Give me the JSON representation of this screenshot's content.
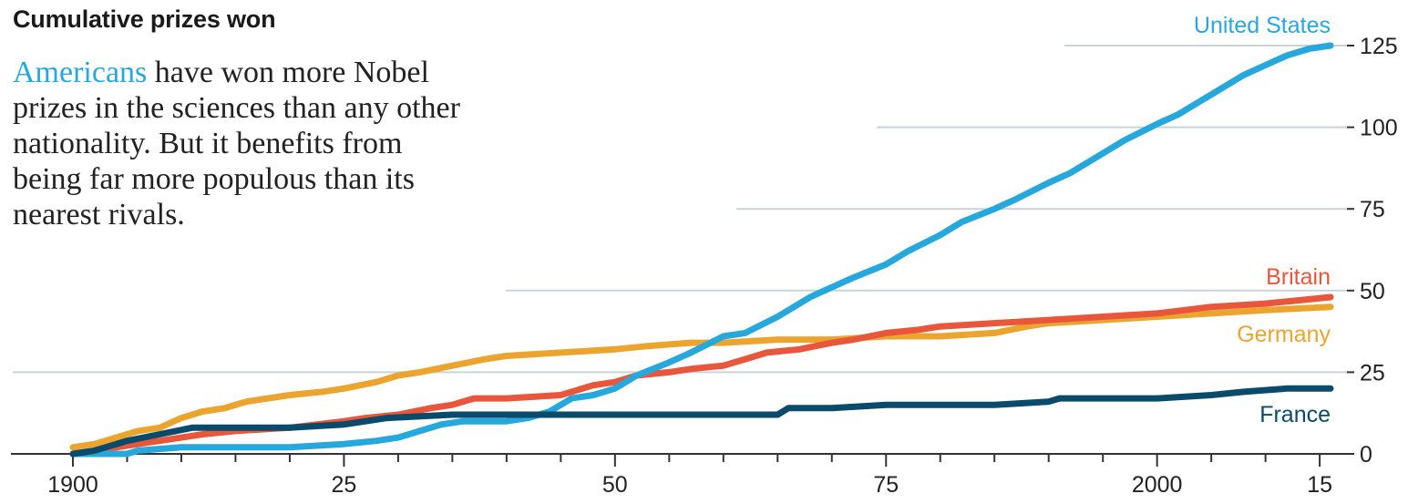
{
  "chart_data": {
    "type": "line",
    "title": "Cumulative prizes won",
    "subtitle_parts": {
      "highlight": "Americans",
      "rest": " have won more Nobel prizes in the sciences than any other nationality. But it benefits from being far more populous than its nearest rivals."
    },
    "xlim": [
      1900,
      2016
    ],
    "ylim": [
      0,
      125
    ],
    "x_ticks": [
      1900,
      1925,
      1950,
      1975,
      2000,
      2015
    ],
    "x_tick_labels": [
      "1900",
      "25",
      "50",
      "75",
      "2000",
      "15"
    ],
    "y_ticks": [
      0,
      25,
      50,
      75,
      100,
      125
    ],
    "y_tick_labels": [
      "0",
      "25",
      "50",
      "75",
      "100",
      "125"
    ],
    "grid": true,
    "y_axis_side": "right",
    "series": [
      {
        "name": "United States",
        "color": "#27a8dc",
        "points": [
          [
            1900,
            0
          ],
          [
            1905,
            0
          ],
          [
            1906,
            1
          ],
          [
            1910,
            2
          ],
          [
            1915,
            2
          ],
          [
            1920,
            2
          ],
          [
            1925,
            3
          ],
          [
            1928,
            4
          ],
          [
            1930,
            5
          ],
          [
            1932,
            7
          ],
          [
            1934,
            9
          ],
          [
            1936,
            10
          ],
          [
            1938,
            10
          ],
          [
            1940,
            10
          ],
          [
            1942,
            11
          ],
          [
            1944,
            13
          ],
          [
            1946,
            17
          ],
          [
            1948,
            18
          ],
          [
            1950,
            20
          ],
          [
            1952,
            24
          ],
          [
            1955,
            28
          ],
          [
            1957,
            31
          ],
          [
            1960,
            36
          ],
          [
            1962,
            37
          ],
          [
            1965,
            42
          ],
          [
            1968,
            48
          ],
          [
            1970,
            51
          ],
          [
            1972,
            54
          ],
          [
            1975,
            58
          ],
          [
            1977,
            62
          ],
          [
            1980,
            67
          ],
          [
            1982,
            71
          ],
          [
            1985,
            75
          ],
          [
            1987,
            78
          ],
          [
            1990,
            83
          ],
          [
            1992,
            86
          ],
          [
            1995,
            92
          ],
          [
            1997,
            96
          ],
          [
            2000,
            101
          ],
          [
            2002,
            104
          ],
          [
            2004,
            108
          ],
          [
            2006,
            112
          ],
          [
            2008,
            116
          ],
          [
            2010,
            119
          ],
          [
            2012,
            122
          ],
          [
            2014,
            124
          ],
          [
            2016,
            125
          ]
        ]
      },
      {
        "name": "Britain",
        "color": "#e8563b",
        "points": [
          [
            1900,
            0
          ],
          [
            1902,
            1
          ],
          [
            1904,
            2
          ],
          [
            1906,
            3
          ],
          [
            1908,
            4
          ],
          [
            1910,
            5
          ],
          [
            1912,
            6
          ],
          [
            1915,
            7
          ],
          [
            1920,
            8
          ],
          [
            1925,
            10
          ],
          [
            1927,
            11
          ],
          [
            1930,
            12
          ],
          [
            1933,
            14
          ],
          [
            1935,
            15
          ],
          [
            1937,
            17
          ],
          [
            1940,
            17
          ],
          [
            1945,
            18
          ],
          [
            1948,
            21
          ],
          [
            1950,
            22
          ],
          [
            1952,
            24
          ],
          [
            1955,
            25
          ],
          [
            1957,
            26
          ],
          [
            1960,
            27
          ],
          [
            1962,
            29
          ],
          [
            1964,
            31
          ],
          [
            1967,
            32
          ],
          [
            1970,
            34
          ],
          [
            1972,
            35
          ],
          [
            1975,
            37
          ],
          [
            1978,
            38
          ],
          [
            1980,
            39
          ],
          [
            1985,
            40
          ],
          [
            1990,
            41
          ],
          [
            1995,
            42
          ],
          [
            2000,
            43
          ],
          [
            2005,
            45
          ],
          [
            2010,
            46
          ],
          [
            2013,
            47
          ],
          [
            2016,
            48
          ]
        ]
      },
      {
        "name": "Germany",
        "color": "#eba52f",
        "points": [
          [
            1900,
            2
          ],
          [
            1902,
            3
          ],
          [
            1904,
            5
          ],
          [
            1906,
            7
          ],
          [
            1908,
            8
          ],
          [
            1910,
            11
          ],
          [
            1912,
            13
          ],
          [
            1914,
            14
          ],
          [
            1916,
            16
          ],
          [
            1920,
            18
          ],
          [
            1923,
            19
          ],
          [
            1925,
            20
          ],
          [
            1928,
            22
          ],
          [
            1930,
            24
          ],
          [
            1932,
            25
          ],
          [
            1935,
            27
          ],
          [
            1938,
            29
          ],
          [
            1940,
            30
          ],
          [
            1945,
            31
          ],
          [
            1950,
            32
          ],
          [
            1953,
            33
          ],
          [
            1957,
            34
          ],
          [
            1960,
            34
          ],
          [
            1965,
            35
          ],
          [
            1970,
            35
          ],
          [
            1975,
            36
          ],
          [
            1980,
            36
          ],
          [
            1985,
            37
          ],
          [
            1988,
            39
          ],
          [
            1990,
            40
          ],
          [
            1995,
            41
          ],
          [
            2000,
            42
          ],
          [
            2005,
            43
          ],
          [
            2010,
            44
          ],
          [
            2016,
            45
          ]
        ]
      },
      {
        "name": "France",
        "color": "#0a4a6a",
        "points": [
          [
            1900,
            0
          ],
          [
            1902,
            1
          ],
          [
            1903,
            2
          ],
          [
            1905,
            4
          ],
          [
            1908,
            6
          ],
          [
            1911,
            8
          ],
          [
            1913,
            8
          ],
          [
            1920,
            8
          ],
          [
            1925,
            9
          ],
          [
            1927,
            10
          ],
          [
            1929,
            11
          ],
          [
            1935,
            12
          ],
          [
            1940,
            12
          ],
          [
            1945,
            12
          ],
          [
            1950,
            12
          ],
          [
            1955,
            12
          ],
          [
            1960,
            12
          ],
          [
            1965,
            12
          ],
          [
            1966,
            14
          ],
          [
            1970,
            14
          ],
          [
            1975,
            15
          ],
          [
            1985,
            15
          ],
          [
            1990,
            16
          ],
          [
            1991,
            17
          ],
          [
            1995,
            17
          ],
          [
            2000,
            17
          ],
          [
            2005,
            18
          ],
          [
            2008,
            19
          ],
          [
            2012,
            20
          ],
          [
            2016,
            20
          ]
        ]
      }
    ]
  }
}
